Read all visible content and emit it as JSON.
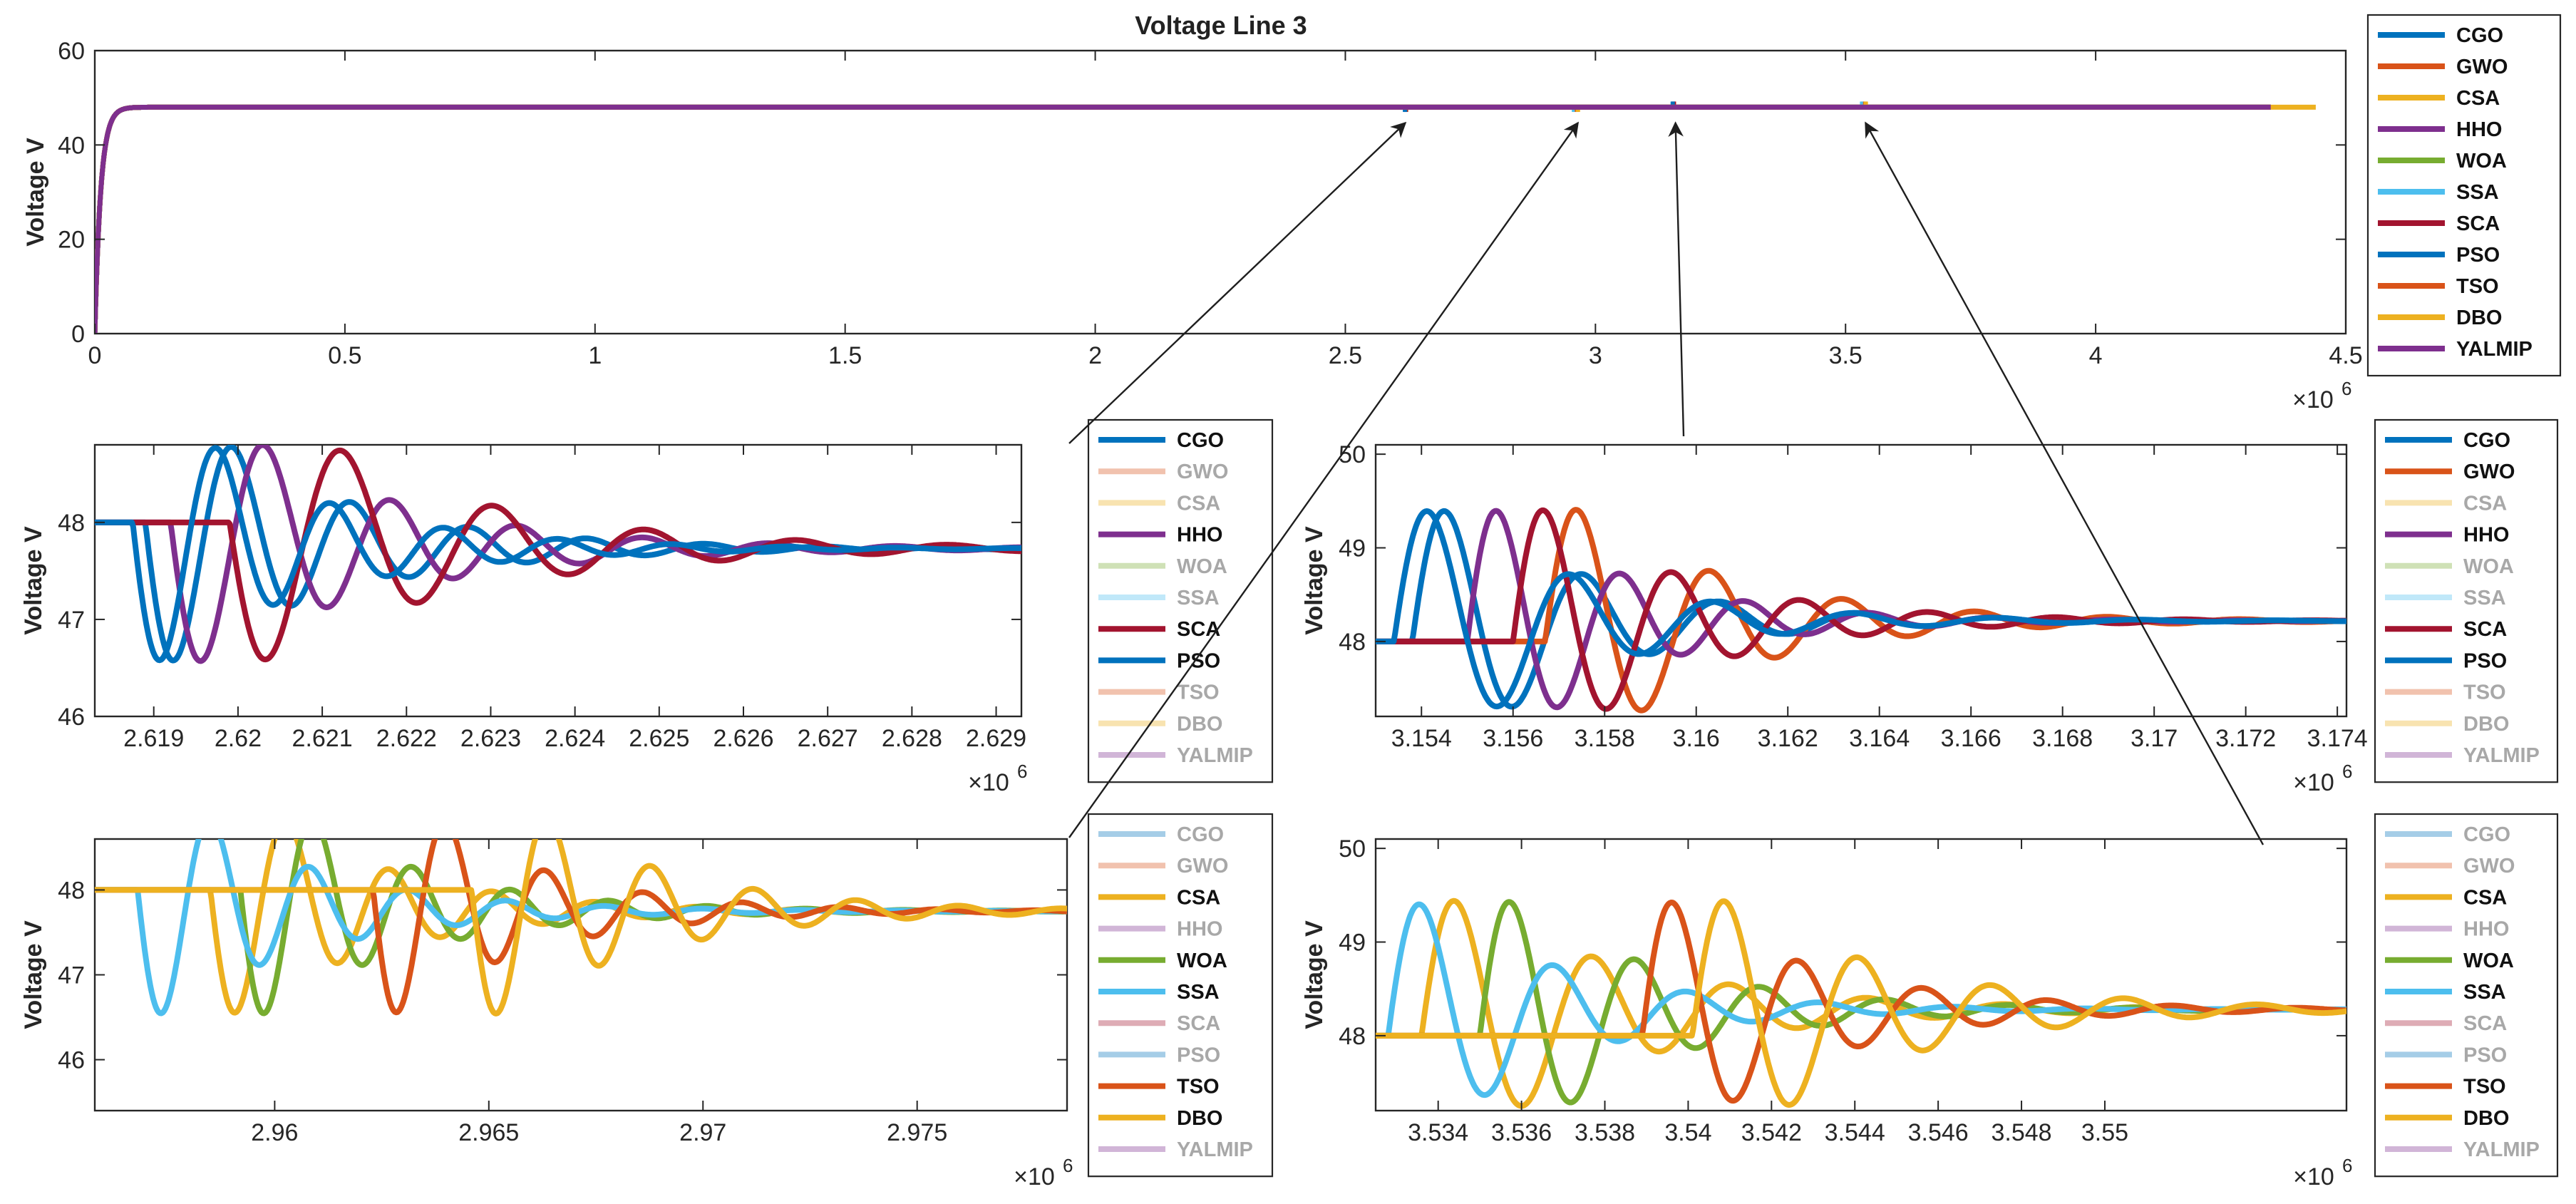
{
  "figure_title": "Voltage Line 3",
  "colors": {
    "CGO": "#0072BD",
    "GWO": "#D95319",
    "CSA": "#EDB120",
    "HHO": "#7E2F8E",
    "WOA": "#77AC30",
    "SSA": "#4DBEEE",
    "SCA": "#A2142F",
    "PSO": "#0072BD",
    "TSO": "#D95319",
    "DBO": "#EDB120",
    "YALMIP": "#7E2F8E"
  },
  "chart_data": [
    {
      "id": "main",
      "type": "line",
      "title": "Voltage Line 3",
      "xlabel": "",
      "ylabel": "Voltage V",
      "xlim": [
        0,
        4500000
      ],
      "ylim": [
        0,
        60
      ],
      "xticks": [
        0,
        500000,
        1000000,
        1500000,
        2000000,
        2500000,
        3000000,
        3500000,
        4000000,
        4500000
      ],
      "xtick_labels": [
        "0",
        "0.5",
        "1",
        "1.5",
        "2",
        "2.5",
        "3",
        "3.5",
        "4",
        "4.5"
      ],
      "yticks": [
        0,
        20,
        40,
        60
      ],
      "ytick_labels": [
        "0",
        "20",
        "40",
        "60"
      ],
      "x_exponent_label": "×10",
      "x_exponent_power": "6",
      "legend_position": "outside-right",
      "series": [
        {
          "name": "CGO",
          "shape": {
            "kind": "rise",
            "v0": 0,
            "v1": 48,
            "tau": 12000,
            "end": 4350000
          },
          "dips": [
            [
              2620000,
              47
            ],
            [
              3155000,
              49.2
            ]
          ],
          "active": true
        },
        {
          "name": "GWO",
          "shape": {
            "kind": "rise",
            "v0": 0,
            "v1": 48,
            "tau": 12000,
            "end": 4350000
          },
          "dips": [
            [
              2621500,
              47
            ],
            [
              3157000,
              49.2
            ]
          ],
          "active": true
        },
        {
          "name": "CSA",
          "shape": {
            "kind": "rise",
            "v0": 0,
            "v1": 48,
            "tau": 12000,
            "end": 4350000
          },
          "dips": [
            [
              2958000,
              47
            ],
            [
              3534000,
              49.2
            ]
          ],
          "active": true
        },
        {
          "name": "HHO",
          "shape": {
            "kind": "rise",
            "v0": 0,
            "v1": 48,
            "tau": 12000,
            "end": 4350000
          },
          "dips": [
            [
              2619500,
              47
            ],
            [
              3156000,
              49.2
            ]
          ],
          "active": true
        },
        {
          "name": "WOA",
          "shape": {
            "kind": "rise",
            "v0": 0,
            "v1": 48,
            "tau": 12000,
            "end": 4350000
          },
          "dips": [
            [
              2960000,
              47
            ],
            [
              3535500,
              49.2
            ]
          ],
          "active": true
        },
        {
          "name": "SSA",
          "shape": {
            "kind": "rise",
            "v0": 0,
            "v1": 48,
            "tau": 12000,
            "end": 4350000
          },
          "dips": [
            [
              2957000,
              47
            ],
            [
              3533000,
              49.2
            ]
          ],
          "active": true
        },
        {
          "name": "SCA",
          "shape": {
            "kind": "rise",
            "v0": 0,
            "v1": 48,
            "tau": 12000,
            "end": 4350000
          },
          "dips": [
            [
              2620300,
              47
            ],
            [
              3156500,
              49.2
            ]
          ],
          "active": true
        },
        {
          "name": "PSO",
          "shape": {
            "kind": "rise",
            "v0": 0,
            "v1": 48,
            "tau": 12000,
            "end": 4350000
          },
          "dips": [
            [
              2619300,
              47
            ],
            [
              3154500,
              49.2
            ]
          ],
          "active": true
        },
        {
          "name": "TSO",
          "shape": {
            "kind": "rise",
            "v0": 0,
            "v1": 48,
            "tau": 12000,
            "end": 4350000
          },
          "dips": [
            [
              2963000,
              47
            ],
            [
              3539300,
              49.2
            ]
          ],
          "active": true
        },
        {
          "name": "DBO",
          "shape": {
            "kind": "rise",
            "v0": 0,
            "v1": 48,
            "tau": 12000,
            "end": 4440000
          },
          "dips": [
            [
              2965000,
              47
            ],
            [
              3540500,
              49.2
            ]
          ],
          "active": true
        },
        {
          "name": "YALMIP",
          "shape": {
            "kind": "rise",
            "v0": 0,
            "v1": 48,
            "tau": 12000,
            "end": 4350000
          },
          "dips": [],
          "active": true
        }
      ]
    },
    {
      "id": "zoom1",
      "type": "line",
      "title": "",
      "xlabel": "",
      "ylabel": "Voltage V",
      "xlim": [
        2618300,
        2629300
      ],
      "ylim": [
        46,
        48.8
      ],
      "xticks": [
        2619000,
        2620000,
        2621000,
        2622000,
        2623000,
        2624000,
        2625000,
        2626000,
        2627000,
        2628000,
        2629000
      ],
      "xtick_labels": [
        "2.619",
        "2.62",
        "2.621",
        "2.622",
        "2.623",
        "2.624",
        "2.625",
        "2.626",
        "2.627",
        "2.628",
        "2.629"
      ],
      "yticks": [
        46,
        47,
        48
      ],
      "ytick_labels": [
        "46",
        "47",
        "48"
      ],
      "x_exponent_label": "×10",
      "x_exponent_power": "6",
      "legend_position": "outside-right",
      "series": [
        {
          "name": "CGO",
          "shape": {
            "kind": "osc",
            "t0": 2618900,
            "base": 48,
            "final": 47.73,
            "amp": -1.62,
            "period": 1400,
            "tau": 1900
          },
          "active": true
        },
        {
          "name": "GWO",
          "shape": {
            "kind": "osc",
            "t0": 2620900,
            "base": 48,
            "final": 47.73,
            "amp": -1.62,
            "period": 1700,
            "tau": 2400
          },
          "active": false
        },
        {
          "name": "CSA",
          "shape": {
            "kind": "flat",
            "v": 47.75
          },
          "active": false
        },
        {
          "name": "HHO",
          "shape": {
            "kind": "osc",
            "t0": 2619200,
            "base": 48,
            "final": 47.73,
            "amp": -1.62,
            "period": 1500,
            "tau": 2100
          },
          "active": true
        },
        {
          "name": "WOA",
          "shape": {
            "kind": "flat",
            "v": 47.75
          },
          "active": false
        },
        {
          "name": "SSA",
          "shape": {
            "kind": "flat",
            "v": 47.75
          },
          "active": false
        },
        {
          "name": "SCA",
          "shape": {
            "kind": "osc",
            "t0": 2619900,
            "base": 48,
            "final": 47.73,
            "amp": -1.62,
            "period": 1800,
            "tau": 2300
          },
          "active": true
        },
        {
          "name": "PSO",
          "shape": {
            "kind": "osc",
            "t0": 2618750,
            "base": 48,
            "final": 47.73,
            "amp": -1.62,
            "period": 1350,
            "tau": 1800
          },
          "active": true
        },
        {
          "name": "TSO",
          "shape": {
            "kind": "flat",
            "v": 47.75
          },
          "active": false
        },
        {
          "name": "DBO",
          "shape": {
            "kind": "flat",
            "v": 47.75
          },
          "active": false
        },
        {
          "name": "YALMIP",
          "shape": {
            "kind": "flat",
            "v": 47.75
          },
          "active": false
        }
      ]
    },
    {
      "id": "zoom2",
      "type": "line",
      "title": "",
      "xlabel": "",
      "ylabel": "Voltage V",
      "xlim": [
        3153000,
        3174200
      ],
      "ylim": [
        47.2,
        50.1
      ],
      "xticks": [
        3154000,
        3156000,
        3158000,
        3160000,
        3162000,
        3164000,
        3166000,
        3168000,
        3170000,
        3172000,
        3174000
      ],
      "xtick_labels": [
        "3.154",
        "3.156",
        "3.158",
        "3.16",
        "3.162",
        "3.164",
        "3.166",
        "3.168",
        "3.17",
        "3.172",
        "3.174"
      ],
      "yticks": [
        48,
        49,
        50
      ],
      "ytick_labels": [
        "48",
        "49",
        "50"
      ],
      "x_exponent_label": "×10",
      "x_exponent_power": "6",
      "legend_position": "outside-right",
      "series": [
        {
          "name": "CGO",
          "shape": {
            "kind": "osc",
            "t0": 3153800,
            "base": 48,
            "final": 48.22,
            "amp": 1.65,
            "period": 3000,
            "tau": 3300
          },
          "active": true
        },
        {
          "name": "GWO",
          "shape": {
            "kind": "osc",
            "t0": 3156700,
            "base": 48,
            "final": 48.22,
            "amp": 1.65,
            "period": 2900,
            "tau": 3400
          },
          "active": true
        },
        {
          "name": "CSA",
          "shape": {
            "kind": "flat",
            "v": 48.2
          },
          "active": false
        },
        {
          "name": "HHO",
          "shape": {
            "kind": "osc",
            "t0": 3155000,
            "base": 48,
            "final": 48.22,
            "amp": 1.65,
            "period": 2700,
            "tau": 3000
          },
          "active": true
        },
        {
          "name": "WOA",
          "shape": {
            "kind": "flat",
            "v": 48.2
          },
          "active": false
        },
        {
          "name": "SSA",
          "shape": {
            "kind": "flat",
            "v": 48.2
          },
          "active": false
        },
        {
          "name": "SCA",
          "shape": {
            "kind": "osc",
            "t0": 3156000,
            "base": 48,
            "final": 48.22,
            "amp": 1.65,
            "period": 2800,
            "tau": 3200
          },
          "active": true
        },
        {
          "name": "PSO",
          "shape": {
            "kind": "osc",
            "t0": 3153400,
            "base": 48,
            "final": 48.22,
            "amp": 1.65,
            "period": 3100,
            "tau": 3400
          },
          "active": true
        },
        {
          "name": "TSO",
          "shape": {
            "kind": "flat",
            "v": 48.2
          },
          "active": false
        },
        {
          "name": "DBO",
          "shape": {
            "kind": "flat",
            "v": 48.2
          },
          "active": false
        },
        {
          "name": "YALMIP",
          "shape": {
            "kind": "flat",
            "v": 48.2
          },
          "active": false
        }
      ]
    },
    {
      "id": "zoom3",
      "type": "line",
      "title": "",
      "xlabel": "",
      "ylabel": "Voltage V",
      "xlim": [
        2955800,
        2978500
      ],
      "ylim": [
        45.4,
        48.6
      ],
      "xticks": [
        2960000,
        2965000,
        2970000,
        2975000
      ],
      "xtick_labels": [
        "2.96",
        "2.965",
        "2.97",
        "2.975"
      ],
      "yticks": [
        46,
        47,
        48
      ],
      "ytick_labels": [
        "46",
        "47",
        "48"
      ],
      "x_exponent_label": "×10",
      "x_exponent_power": "6",
      "legend_position": "outside-right",
      "series": [
        {
          "name": "CGO",
          "shape": {
            "kind": "flat",
            "v": 47.8
          },
          "active": false
        },
        {
          "name": "GWO",
          "shape": {
            "kind": "flat",
            "v": 47.8
          },
          "active": false
        },
        {
          "name": "CSA",
          "shape": {
            "kind": "osc",
            "t0": 2958500,
            "base": 48,
            "final": 47.75,
            "amp": -1.65,
            "period": 2400,
            "tau": 3300
          },
          "active": true
        },
        {
          "name": "HHO",
          "shape": {
            "kind": "flat",
            "v": 47.8
          },
          "active": false
        },
        {
          "name": "WOA",
          "shape": {
            "kind": "osc",
            "t0": 2959200,
            "base": 48,
            "final": 47.75,
            "amp": -1.65,
            "period": 2300,
            "tau": 3300
          },
          "active": true
        },
        {
          "name": "SSA",
          "shape": {
            "kind": "osc",
            "t0": 2956800,
            "base": 48,
            "final": 47.75,
            "amp": -1.65,
            "period": 2300,
            "tau": 3300
          },
          "active": true
        },
        {
          "name": "SCA",
          "shape": {
            "kind": "flat",
            "v": 47.8
          },
          "active": false
        },
        {
          "name": "PSO",
          "shape": {
            "kind": "flat",
            "v": 47.8
          },
          "active": false
        },
        {
          "name": "TSO",
          "shape": {
            "kind": "osc",
            "t0": 2962300,
            "base": 48,
            "final": 47.75,
            "amp": -1.65,
            "period": 2300,
            "tau": 3100
          },
          "active": true
        },
        {
          "name": "DBO",
          "shape": {
            "kind": "osc",
            "t0": 2964600,
            "base": 48,
            "final": 47.75,
            "amp": -1.65,
            "period": 2400,
            "tau": 3500
          },
          "active": true
        },
        {
          "name": "YALMIP",
          "shape": {
            "kind": "flat",
            "v": 47.8
          },
          "active": false
        }
      ]
    },
    {
      "id": "zoom4",
      "type": "line",
      "title": "",
      "xlabel": "",
      "ylabel": "Voltage V",
      "xlim": [
        3532500,
        3555800
      ],
      "ylim": [
        47.2,
        50.1
      ],
      "xticks": [
        3534000,
        3536000,
        3538000,
        3540000,
        3542000,
        3544000,
        3546000,
        3548000,
        3550000
      ],
      "xtick_labels": [
        "3.534",
        "3.536",
        "3.538",
        "3.54",
        "3.542",
        "3.544",
        "3.546",
        "3.548",
        "3.55"
      ],
      "yticks": [
        48,
        49,
        50
      ],
      "ytick_labels": [
        "48",
        "49",
        "50"
      ],
      "x_exponent_label": "×10",
      "x_exponent_power": "6",
      "legend_position": "outside-right",
      "series": [
        {
          "name": "CGO",
          "shape": {
            "kind": "flat",
            "v": 48.27
          },
          "active": false
        },
        {
          "name": "GWO",
          "shape": {
            "kind": "flat",
            "v": 48.27
          },
          "active": false
        },
        {
          "name": "CSA",
          "shape": {
            "kind": "osc",
            "t0": 3533600,
            "base": 48,
            "final": 48.28,
            "amp": 1.65,
            "period": 3300,
            "tau": 4200
          },
          "active": true
        },
        {
          "name": "HHO",
          "shape": {
            "kind": "flat",
            "v": 48.27
          },
          "active": false
        },
        {
          "name": "WOA",
          "shape": {
            "kind": "osc",
            "t0": 3535000,
            "base": 48,
            "final": 48.28,
            "amp": 1.65,
            "period": 3000,
            "tau": 3600
          },
          "active": true
        },
        {
          "name": "SSA",
          "shape": {
            "kind": "osc",
            "t0": 3532800,
            "base": 48,
            "final": 48.28,
            "amp": 1.65,
            "period": 3200,
            "tau": 3400
          },
          "active": true
        },
        {
          "name": "SCA",
          "shape": {
            "kind": "flat",
            "v": 48.27
          },
          "active": false
        },
        {
          "name": "PSO",
          "shape": {
            "kind": "flat",
            "v": 48.27
          },
          "active": false
        },
        {
          "name": "TSO",
          "shape": {
            "kind": "osc",
            "t0": 3538900,
            "base": 48,
            "final": 48.28,
            "amp": 1.65,
            "period": 3000,
            "tau": 3500
          },
          "active": true
        },
        {
          "name": "DBO",
          "shape": {
            "kind": "osc",
            "t0": 3540100,
            "base": 48,
            "final": 48.28,
            "amp": 1.65,
            "period": 3200,
            "tau": 4000
          },
          "active": true
        },
        {
          "name": "YALMIP",
          "shape": {
            "kind": "flat",
            "v": 48.27
          },
          "active": false
        }
      ]
    }
  ],
  "zoom_links": [
    {
      "from_panel": "zoom1",
      "to_x": 2620000,
      "to_y": 48
    },
    {
      "from_panel": "zoom3",
      "to_x": 2965000,
      "to_y": 48
    },
    {
      "from_panel": "zoom2",
      "to_x": 3160000,
      "to_y": 48
    },
    {
      "from_panel": "zoom4",
      "to_x": 3540000,
      "to_y": 48
    }
  ]
}
